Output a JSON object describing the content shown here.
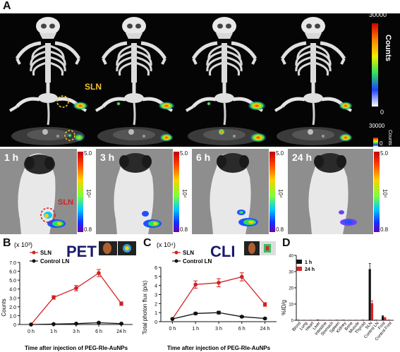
{
  "figure": {
    "panels": {
      "a": "A",
      "b": "B",
      "c": "C",
      "d": "D"
    },
    "panel_a": {
      "sln_label": "SLN",
      "colorbar_large": {
        "max": "30000",
        "min": "0",
        "label": "Counts"
      },
      "colorbar_small": {
        "max": "30000",
        "min": "0",
        "label": "Counts"
      },
      "time_labels": [
        "1 h",
        "3 h",
        "6 h",
        "24 h"
      ],
      "cli_sln_label": "SLN",
      "cli_colorbar": {
        "max": "5.0",
        "min": "0.8",
        "exponent": "10⁴"
      }
    },
    "colors": {
      "sln": "#d42020",
      "control": "#111111",
      "pet_title": "#1a1a6e",
      "highlight": "#f2c230"
    }
  },
  "chart_data": [
    {
      "id": "B",
      "type": "line",
      "title": "PET",
      "multiplier": "(x 10³)",
      "xlabel": "Time after injection of PEG-Rle-AuNPs",
      "ylabel": "Counts",
      "categories": [
        "0 h",
        "1 h",
        "3 h",
        "6 h",
        "24 h"
      ],
      "ylim": [
        0,
        7
      ],
      "yticks": [
        "0",
        "1.0",
        "2.0",
        "3.0",
        "4.0",
        "5.0",
        "6.0",
        "7.0"
      ],
      "series": [
        {
          "name": "SLN",
          "values": [
            0,
            3.05,
            4.1,
            5.8,
            2.35
          ],
          "errors": [
            0,
            0.2,
            0.3,
            0.4,
            0.2
          ]
        },
        {
          "name": "Control LN",
          "values": [
            0,
            0.05,
            0.1,
            0.2,
            0.1
          ],
          "errors": [
            0,
            0.02,
            0.03,
            0.04,
            0.03
          ]
        }
      ]
    },
    {
      "id": "C",
      "type": "line",
      "title": "CLI",
      "multiplier": "(x 10⁴)",
      "xlabel": "Time after injection of PEG-Rle-AuNPs",
      "ylabel": "Total photon flux (p/s)",
      "categories": [
        "0 h",
        "1 h",
        "3 h",
        "6 h",
        "24 h"
      ],
      "ylim": [
        0,
        6
      ],
      "yticks": [
        "0",
        "1",
        "2",
        "3",
        "4",
        "5",
        "6"
      ],
      "series": [
        {
          "name": "SLN",
          "values": [
            0.3,
            4.1,
            4.3,
            4.95,
            1.9
          ],
          "errors": [
            0,
            0.4,
            0.45,
            0.45,
            0.2
          ]
        },
        {
          "name": "Control LN",
          "values": [
            0.3,
            0.9,
            1.0,
            0.55,
            0.35
          ],
          "errors": [
            0,
            0.12,
            0.15,
            0.1,
            0.06
          ]
        }
      ]
    },
    {
      "id": "D",
      "type": "bar",
      "ylabel": "%ID/g",
      "ylim": [
        0,
        40
      ],
      "yticks": [
        "0",
        "10",
        "20",
        "30",
        "40"
      ],
      "categories": [
        "Blood",
        "Lung",
        "Heart",
        "Liver",
        "Intestine",
        "Stomach",
        "Spleen",
        "Kidney",
        "Bone",
        "Muscle",
        "Thyroid",
        "SLN",
        "Control LN",
        "Foot",
        "Control Foot"
      ],
      "series": [
        {
          "name": "1 h",
          "values": [
            0.3,
            0.2,
            0.2,
            0.4,
            0.2,
            0.2,
            0.3,
            0.3,
            0.2,
            0.2,
            0.3,
            31.5,
            0.3,
            2.5,
            0.3
          ],
          "errors": [
            0,
            0,
            0,
            0,
            0,
            0,
            0,
            0,
            0,
            0,
            0,
            3.5,
            0,
            0.3,
            0
          ]
        },
        {
          "name": "24 h",
          "values": [
            0.2,
            0.2,
            0.2,
            0.3,
            0.2,
            0.2,
            0.2,
            0.2,
            0.2,
            0.2,
            0.2,
            10.5,
            0.2,
            1.5,
            0.2
          ],
          "errors": [
            0,
            0,
            0,
            0,
            0,
            0,
            0,
            0,
            0,
            0,
            0,
            1.5,
            0,
            0.2,
            0
          ]
        }
      ]
    }
  ]
}
